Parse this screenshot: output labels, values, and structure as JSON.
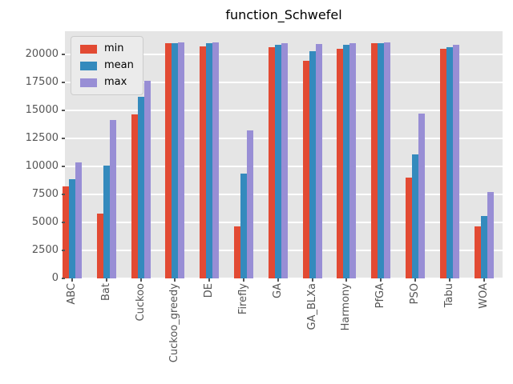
{
  "chart_data": {
    "type": "bar",
    "title": "function_Schwefel",
    "xlabel": "",
    "ylabel": "",
    "grid": true,
    "plot_background": "#E5E5E5",
    "gridline_color": "#ffffff",
    "tick_color": "#555555",
    "legend_position": "upper left",
    "ylim": [
      0,
      22100
    ],
    "yticks": [
      0,
      2500,
      5000,
      7500,
      10000,
      12500,
      15000,
      17500,
      20000
    ],
    "categories": [
      "ABC",
      "Bat",
      "Cuckoo",
      "Cuckoo_greedy",
      "DE",
      "Firefly",
      "GA",
      "GA_BLXa",
      "Harmony",
      "PfGA",
      "PSO",
      "Tabu",
      "WOA"
    ],
    "series": [
      {
        "name": "min",
        "color": "#E24A33",
        "values": [
          8200,
          5800,
          14650,
          21000,
          20750,
          4650,
          20700,
          19450,
          20500,
          21000,
          9000,
          20550,
          4650
        ]
      },
      {
        "name": "mean",
        "color": "#348ABD",
        "values": [
          8850,
          10100,
          16250,
          21000,
          21000,
          9400,
          20900,
          20300,
          20900,
          21000,
          11100,
          20700,
          5600
        ]
      },
      {
        "name": "max",
        "color": "#988ED5",
        "values": [
          10400,
          14150,
          17650,
          21100,
          21100,
          13200,
          21000,
          20950,
          21000,
          21100,
          14700,
          20850,
          7700
        ]
      }
    ]
  }
}
